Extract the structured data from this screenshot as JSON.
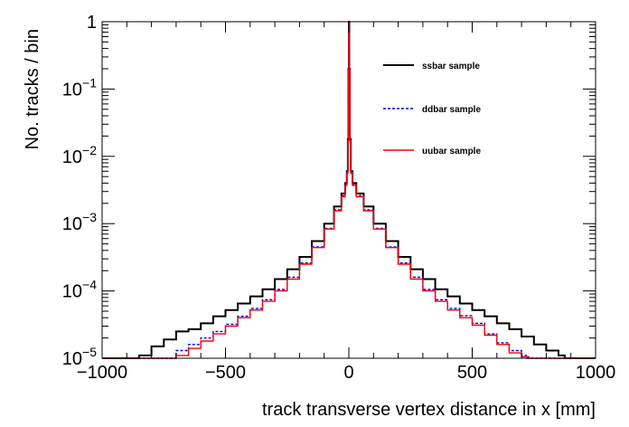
{
  "chart_data": {
    "type": "line",
    "title": "",
    "xlabel": "track transverse vertex distance in x [mm]",
    "ylabel": "No. tracks / bin",
    "xlim": [
      -1000,
      1000
    ],
    "ylim": [
      1e-05,
      1
    ],
    "yscale": "log",
    "grid": false,
    "legend_position": "top-right",
    "x_ticks": [
      -1000,
      -500,
      0,
      500,
      1000
    ],
    "x_tick_labels": [
      "−1000",
      "−500",
      "0",
      "500",
      "1000"
    ],
    "y_tick_labels": [
      {
        "base": "",
        "exp": "",
        "text": "1"
      },
      {
        "base": "10",
        "exp": "−1"
      },
      {
        "base": "10",
        "exp": "−2"
      },
      {
        "base": "10",
        "exp": "−3"
      },
      {
        "base": "10",
        "exp": "−4"
      },
      {
        "base": "10",
        "exp": "−5"
      }
    ],
    "y_tick_values": [
      1,
      0.1,
      0.01,
      0.001,
      0.0001,
      1e-05
    ],
    "series": [
      {
        "name": "ssbar sample",
        "color": "#000000",
        "style": "solid",
        "x": [
          -1000,
          -875,
          -850,
          -800,
          -750,
          -700,
          -650,
          -600,
          -550,
          -500,
          -450,
          -400,
          -350,
          -300,
          -250,
          -200,
          -150,
          -100,
          -60,
          -30,
          -15,
          -8,
          -4,
          -2,
          0,
          2,
          4,
          8,
          15,
          30,
          60,
          100,
          150,
          200,
          250,
          300,
          350,
          400,
          450,
          500,
          550,
          600,
          650,
          700,
          750,
          800,
          850,
          875,
          1000
        ],
        "y": [
          1e-05,
          1e-05,
          1.1e-05,
          1.5e-05,
          1.9e-05,
          2.5e-05,
          2.7e-05,
          3.3e-05,
          4.2e-05,
          5.2e-05,
          6.5e-05,
          8.3e-05,
          0.000106,
          0.00015,
          0.00021,
          0.00032,
          0.00055,
          0.001,
          0.0018,
          0.0028,
          0.004,
          0.006,
          0.018,
          0.2,
          1,
          0.2,
          0.018,
          0.006,
          0.004,
          0.0028,
          0.0018,
          0.001,
          0.00055,
          0.00032,
          0.00021,
          0.00015,
          0.000106,
          8.3e-05,
          6.5e-05,
          5.2e-05,
          4.2e-05,
          3.3e-05,
          2.7e-05,
          2.1e-05,
          1.6e-05,
          1.3e-05,
          1.1e-05,
          1e-05,
          1e-05
        ]
      },
      {
        "name": "ddbar sample",
        "color": "#0000ff",
        "style": "dashed",
        "x": [
          -1000,
          -720,
          -700,
          -650,
          -600,
          -550,
          -500,
          -450,
          -400,
          -350,
          -300,
          -250,
          -200,
          -150,
          -100,
          -60,
          -30,
          -15,
          -8,
          -4,
          -2,
          0,
          2,
          4,
          8,
          15,
          30,
          60,
          100,
          150,
          200,
          250,
          300,
          350,
          400,
          450,
          500,
          550,
          600,
          650,
          700,
          720,
          1000
        ],
        "y": [
          1e-05,
          1e-05,
          1.3e-05,
          1.6e-05,
          2e-05,
          2.5e-05,
          3.2e-05,
          4.2e-05,
          5.5e-05,
          7.4e-05,
          0.000105,
          0.00016,
          0.00026,
          0.00045,
          0.00085,
          0.0016,
          0.0026,
          0.0038,
          0.0058,
          0.018,
          0.2,
          0.95,
          0.2,
          0.018,
          0.0058,
          0.0038,
          0.0026,
          0.0016,
          0.00085,
          0.00045,
          0.00026,
          0.00016,
          0.000105,
          7.4e-05,
          5.5e-05,
          4.3e-05,
          3.3e-05,
          2.3e-05,
          1.7e-05,
          1.3e-05,
          1.1e-05,
          1e-05,
          1e-05
        ]
      },
      {
        "name": "uubar sample",
        "color": "#ff0000",
        "style": "solid",
        "x": [
          -1000,
          -730,
          -700,
          -650,
          -600,
          -550,
          -500,
          -450,
          -400,
          -350,
          -300,
          -250,
          -200,
          -150,
          -100,
          -60,
          -30,
          -15,
          -8,
          -4,
          -2,
          0,
          2,
          4,
          8,
          15,
          30,
          60,
          100,
          150,
          200,
          250,
          300,
          350,
          400,
          450,
          500,
          550,
          600,
          650,
          700,
          730,
          1000
        ],
        "y": [
          1e-05,
          1e-05,
          1.1e-05,
          1.4e-05,
          1.8e-05,
          2.3e-05,
          3e-05,
          4e-05,
          5.2e-05,
          7e-05,
          0.0001,
          0.00015,
          0.00025,
          0.00044,
          0.00083,
          0.00155,
          0.0025,
          0.0037,
          0.0056,
          0.017,
          0.19,
          0.95,
          0.19,
          0.017,
          0.0056,
          0.0037,
          0.0025,
          0.00155,
          0.00083,
          0.00044,
          0.00025,
          0.00015,
          0.0001,
          7e-05,
          5.2e-05,
          4e-05,
          3.1e-05,
          2.2e-05,
          1.6e-05,
          1.2e-05,
          1.05e-05,
          1e-05,
          1e-05
        ]
      }
    ]
  }
}
